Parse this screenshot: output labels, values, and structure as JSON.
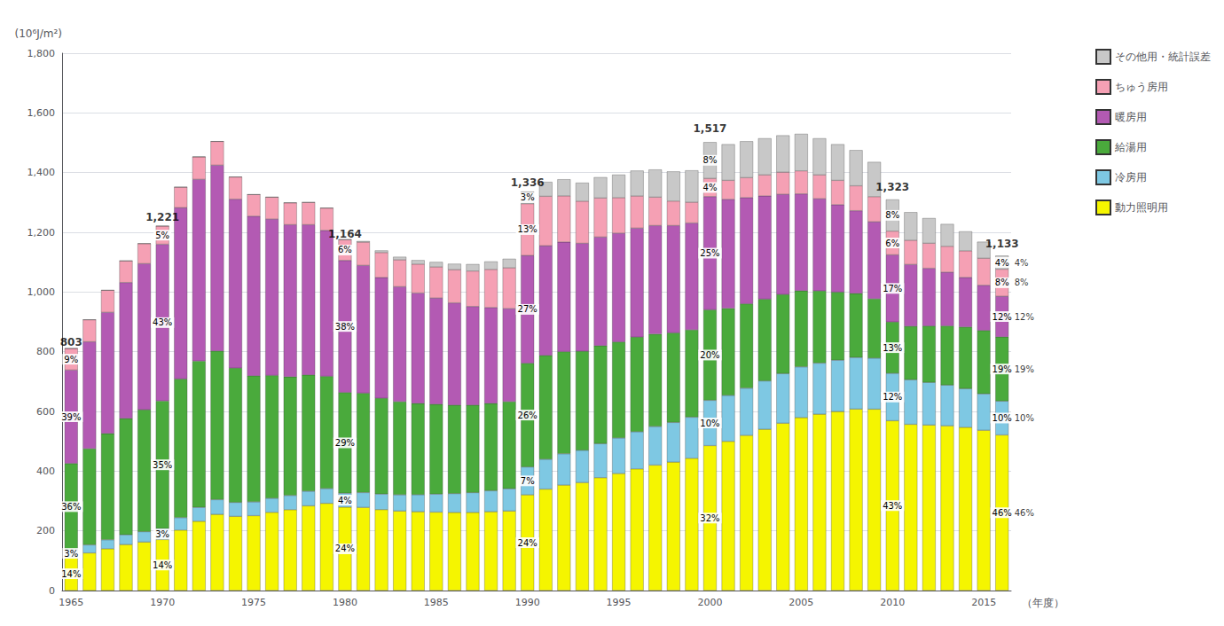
{
  "chart_data": {
    "type": "bar",
    "stacked": true,
    "grid": true,
    "legend": "right",
    "ylabel": "(10⁶J/m²)",
    "xlabel": "（年度）",
    "categories": [
      "1965",
      null,
      null,
      null,
      null,
      "1970",
      null,
      null,
      null,
      null,
      "1975",
      null,
      null,
      null,
      null,
      "1980",
      null,
      null,
      null,
      null,
      "1985",
      null,
      null,
      null,
      null,
      "1990",
      null,
      null,
      null,
      null,
      "1995",
      null,
      null,
      null,
      null,
      "2000",
      null,
      null,
      null,
      null,
      "2005",
      null,
      null,
      null,
      null,
      "2010",
      null,
      null,
      null,
      null,
      "2015",
      null
    ],
    "ylim": [
      0,
      1800
    ],
    "yticks": [
      0,
      200,
      400,
      600,
      800,
      {
        "value": 1000,
        "label": "1,000"
      },
      {
        "value": 1200,
        "label": "1,200"
      },
      {
        "value": 1400,
        "label": "1,400"
      },
      {
        "value": 1600,
        "label": "1,600"
      },
      {
        "value": 1800,
        "label": "1,800"
      }
    ],
    "series": [
      {
        "name": "動力照明用",
        "color": "#f5f500",
        "values": [
          112.42,
          126,
          140,
          154,
          162.4,
          170.94,
          202.5,
          232,
          255,
          248.4,
          250.8,
          262,
          270.9,
          283.8,
          292.1,
          279.36,
          278.4,
          271.2,
          266.4,
          264,
          262.8,
          261.6,
          261.6,
          264,
          266.4,
          320.64,
          339.76,
          353.28,
          361.68,
          378.08,
          392,
          407.52,
          420.32,
          430.16,
          443.04,
          485.44,
          499.81,
          519.84,
          540.09,
          560.56,
          579.375,
          590.58,
          599.47,
          607.92,
          607.55,
          568.89,
          556.8,
          554.4,
          551.8,
          546.75,
          536.9,
          521.18
        ]
      },
      {
        "name": "冷房用",
        "color": "#7ec8e3",
        "values": [
          24.09,
          27,
          30,
          33,
          34.8,
          36.63,
          41.85,
          46.4,
          49.5,
          46.92,
          46.2,
          47.16,
          47.73,
          49.02,
          49.53,
          46.56,
          49.88,
          51.98,
          54.39,
          57.2,
          60.225,
          63.22,
          66.49,
          70.4,
          74.37,
          93.52,
          100.01,
          104.88,
          108.23,
          113.98,
          119,
          124.52,
          129.22,
          133.01,
          137.74,
          151.7,
          154.02,
          158.08,
          162.18,
          166.32,
          169.95,
          171.36,
          172.14,
          172.84,
          171.1,
          158.76,
          149.3333,
          142.8,
          136.4,
          129.6,
          121.9333,
          113.3
        ]
      },
      {
        "name": "給湯用",
        "color": "#4aaa3c",
        "values": [
          289.08,
          322.2,
          356,
          389.4,
          408.32,
          427.35,
          464.4,
          490.1,
          498,
          449.88,
          422.4,
          411.34,
          397.32,
          389.58,
          375.92,
          337.56,
          332.92,
          320.92,
          311.91,
          305.8,
          301.125,
          296.48,
          293.21,
          292.6,
          291.93,
          347.36,
          347.98,
          342.24,
          331.54,
          328.04,
          322,
          316.96,
          309.56,
          299.98,
          292.52,
          303.4,
          291.43,
          282.72,
          273.87,
          264.88,
          254.925,
          241.74,
          228.01,
          214.56,
          198.65,
          171.99,
          179.2,
          189,
          198.4,
          206.55,
          212.4,
          215.27
        ]
      },
      {
        "name": "暖房用",
        "color": "#b35ab3",
        "values": [
          313.17,
          358.2,
          406,
          455.4,
          489.52,
          525.03,
          573.75,
          609,
          622.5,
          565.8,
          534.6,
          524,
          509.55,
          503.1,
          488.95,
          442.32,
          428.04,
          404.54,
          385.17,
          369.6,
          355.875,
          342.26,
          330.27,
          321.2,
          311.91,
          360.72,
          367.16,
          367.08,
          361.68,
          364.18,
          364,
          365.07,
          363.52,
          359.41,
          357.84,
          379.25,
          365.42,
          355.68,
          345.78,
          335.72,
          324.45,
          309.06,
          292.94,
          277.14,
          258.1,
          224.91,
          206.9333,
          193.2,
          179.8,
          166.05,
          151.4333,
          135.96
        ]
      },
      {
        "name": "ちゅう房用",
        "color": "#f5a0b4",
        "values": [
          72.27,
          73.8,
          74,
          72.6,
          67.28,
          61.05,
          68.85,
          75.4,
          79.5,
          74.52,
          72.6,
          73.36,
          73.53,
          74.82,
          74.93,
          69.84,
          77.72,
          83.62,
          89.91,
          96.8,
          104.025,
          111.18,
          118.81,
          127.6,
          136.53,
          173.68,
          165.77,
          154.56,
          141.11,
          130.66,
          119,
          107.54,
          95.14,
          82.07,
          69.58,
          60.68,
          63.42,
          66.88,
          70.38,
          73.92,
          77.25,
          79.56,
          81.54,
          83.44,
          84.1,
          79.38,
          81.0667,
          84,
          86.8,
          89.1,
          90.4667,
          90.64
        ]
      },
      {
        "name": "その他用・統計誤差",
        "color": "#c8c8c8",
        "values": [
          0,
          0,
          0,
          0,
          0,
          0,
          0,
          0,
          0,
          0,
          0,
          0,
          0,
          0,
          0,
          0,
          3.48,
          6.78,
          9.99,
          13.2,
          16.425,
          19.62,
          22.89,
          26.4,
          29.97,
          40.08,
          47.95,
          55.2,
          61.65,
          69.5,
          77,
          84.9,
          92.3,
          99.05,
          106.5,
          121.36,
          120.8,
          121.6,
          122.4,
          123.2,
          123.6,
          122.4,
          120.8,
          119.2,
          116,
          105.84,
          93.8667,
          84,
          74.4,
          64.8,
          55.0667,
          45.32
        ]
      }
    ],
    "total_labels": [
      {
        "x_index": 0,
        "y": 803,
        "text": "803"
      },
      {
        "x_index": 5,
        "y": 1221,
        "text": "1,221"
      },
      {
        "x_index": 15,
        "y": 1164,
        "text": "1,164"
      },
      {
        "x_index": 25,
        "y": 1336,
        "text": "1,336"
      },
      {
        "x_index": 35,
        "y": 1517,
        "text": "1,517"
      },
      {
        "x_index": 45,
        "y": 1323,
        "text": "1,323"
      },
      {
        "x_index": 51,
        "y": 1133,
        "text": "1,133"
      }
    ],
    "segment_labels": [
      {
        "x_index": 0,
        "texts": [
          "14%",
          "3%",
          "36%",
          "39%",
          "9%",
          null
        ]
      },
      {
        "x_index": 5,
        "texts": [
          "14%",
          "3%",
          "35%",
          "43%",
          "5%",
          null
        ]
      },
      {
        "x_index": 15,
        "texts": [
          "24%",
          "4%",
          "29%",
          "38%",
          "6%",
          null
        ]
      },
      {
        "x_index": 25,
        "texts": [
          "24%",
          "7%",
          "26%",
          "27%",
          "13%",
          "3%"
        ]
      },
      {
        "x_index": 35,
        "texts": [
          "32%",
          "10%",
          "20%",
          "25%",
          "4%",
          "8%"
        ]
      },
      {
        "x_index": 45,
        "texts": [
          "43%",
          "12%",
          "13%",
          "17%",
          "6%",
          "8%"
        ]
      },
      {
        "x_index": 51,
        "texts": [
          "46%",
          "10%",
          "19%",
          "12%",
          "8%",
          "4%"
        ]
      }
    ],
    "side_labels": {
      "x_index": 51,
      "texts": [
        "46%",
        "10%",
        "19%",
        "12%",
        "8%",
        "4%"
      ]
    }
  }
}
